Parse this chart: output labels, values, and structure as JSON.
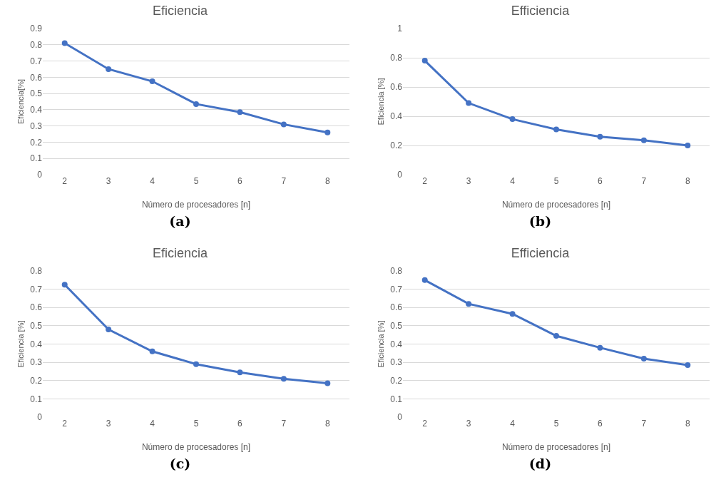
{
  "chart_data": [
    {
      "type": "line",
      "title": "Eficiencia",
      "xlabel": "Número de procesadores [n]",
      "ylabel": "Eficiencia[%]",
      "categories": [
        "2",
        "3",
        "4",
        "5",
        "6",
        "7",
        "8"
      ],
      "series": [
        {
          "color": "#4472c4",
          "values": [
            0.81,
            0.65,
            0.575,
            0.435,
            0.385,
            0.31,
            0.26
          ]
        }
      ],
      "ylim": [
        0,
        0.9
      ],
      "yticks": [
        0,
        0.1,
        0.2,
        0.3,
        0.4,
        0.5,
        0.6,
        0.7,
        0.8,
        0.9
      ],
      "grid": "y",
      "marker": "circle",
      "line_style": "solid",
      "annotations": [
        "(a)"
      ]
    },
    {
      "type": "line",
      "title": "Efficiencia",
      "xlabel": "Número de procesadores [n]",
      "ylabel": "Eficiencia [%]",
      "categories": [
        "2",
        "3",
        "4",
        "5",
        "6",
        "7",
        "8"
      ],
      "series": [
        {
          "color": "#4472c4",
          "values": [
            0.78,
            0.49,
            0.38,
            0.31,
            0.26,
            0.235,
            0.2
          ]
        }
      ],
      "ylim": [
        0,
        1
      ],
      "yticks": [
        0,
        0.2,
        0.4,
        0.6,
        0.8,
        1
      ],
      "grid": "y",
      "marker": "circle",
      "line_style": "solid",
      "annotations": [
        "(b)"
      ]
    },
    {
      "type": "line",
      "title": "Eficiencia",
      "xlabel": "Número de procesadores [n]",
      "ylabel": "Eficiencia [%]",
      "categories": [
        "2",
        "3",
        "4",
        "5",
        "6",
        "7",
        "8"
      ],
      "series": [
        {
          "color": "#4472c4",
          "values": [
            0.725,
            0.48,
            0.36,
            0.29,
            0.245,
            0.21,
            0.185
          ]
        }
      ],
      "ylim": [
        0,
        0.8
      ],
      "yticks": [
        0,
        0.1,
        0.2,
        0.3,
        0.4,
        0.5,
        0.6,
        0.7,
        0.8
      ],
      "grid": "y",
      "marker": "circle",
      "line_style": "solid",
      "annotations": [
        "(c)"
      ]
    },
    {
      "type": "line",
      "title": "Efficiencia",
      "xlabel": "Número de procesadores [n]",
      "ylabel": "Eficiencia [%]",
      "categories": [
        "2",
        "3",
        "4",
        "5",
        "6",
        "7",
        "8"
      ],
      "series": [
        {
          "color": "#4472c4",
          "values": [
            0.75,
            0.62,
            0.565,
            0.445,
            0.38,
            0.32,
            0.285
          ]
        }
      ],
      "ylim": [
        0,
        0.8
      ],
      "yticks": [
        0,
        0.1,
        0.2,
        0.3,
        0.4,
        0.5,
        0.6,
        0.7,
        0.8
      ],
      "grid": "y",
      "marker": "circle",
      "line_style": "solid",
      "annotations": [
        "(d)"
      ]
    }
  ]
}
